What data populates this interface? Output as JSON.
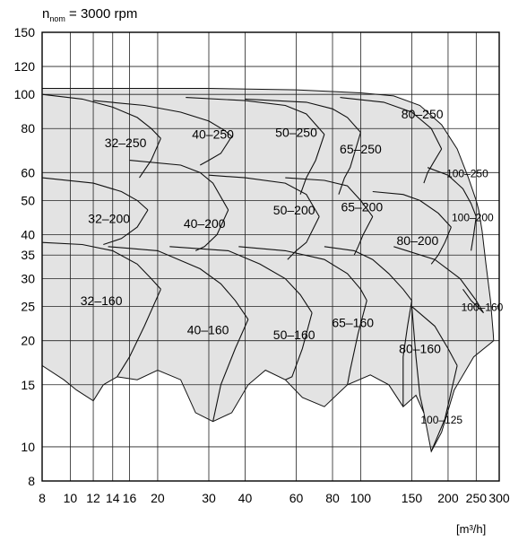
{
  "chart_data": {
    "type": "area",
    "title_main": "n",
    "title_sub": "nom",
    "title_rest": " = 3000 rpm",
    "xunit": "[m³/h]",
    "x_scale": "log",
    "y_scale": "log",
    "xlim": [
      8,
      300
    ],
    "ylim": [
      8,
      150
    ],
    "grid": true,
    "fill_color": "#e3e3e3",
    "line_color": "#111111",
    "x_ticks": [
      8,
      10,
      12,
      14,
      16,
      20,
      30,
      40,
      60,
      80,
      100,
      150,
      200,
      250,
      300
    ],
    "x_tick_labels": [
      "8",
      "10",
      "12",
      "14",
      "16",
      "20",
      "30",
      "40",
      "60",
      "80",
      "100",
      "150",
      "200",
      "250",
      "300"
    ],
    "y_ticks": [
      8,
      10,
      15,
      20,
      25,
      30,
      35,
      40,
      50,
      60,
      80,
      100,
      120,
      150
    ],
    "y_tick_labels": [
      "8",
      "10",
      "15",
      "20",
      "25",
      "30",
      "35",
      "40",
      "50",
      "60",
      "80",
      "100",
      "120",
      "150"
    ],
    "envelope": [
      [
        8,
        104
      ],
      [
        30,
        104
      ],
      [
        60,
        103
      ],
      [
        100,
        101
      ],
      [
        130,
        99
      ],
      [
        160,
        93
      ],
      [
        190,
        82
      ],
      [
        215,
        70
      ],
      [
        235,
        58
      ],
      [
        250,
        50
      ],
      [
        255,
        47
      ],
      [
        262,
        41
      ],
      [
        270,
        33
      ],
      [
        280,
        26
      ],
      [
        286,
        21
      ],
      [
        287,
        20
      ],
      [
        245,
        18
      ],
      [
        210,
        14.5
      ],
      [
        190,
        11
      ],
      [
        175,
        9.7
      ],
      [
        165,
        12.5
      ],
      [
        155,
        14
      ],
      [
        140,
        13
      ],
      [
        125,
        15
      ],
      [
        108,
        16
      ],
      [
        90,
        15
      ],
      [
        75,
        13
      ],
      [
        63,
        13.8
      ],
      [
        55,
        15.5
      ],
      [
        47,
        16.5
      ],
      [
        41,
        15
      ],
      [
        36,
        12.5
      ],
      [
        31,
        11.8
      ],
      [
        27,
        12.5
      ],
      [
        24,
        15.5
      ],
      [
        20,
        16.5
      ],
      [
        17,
        15.5
      ],
      [
        14.5,
        15.8
      ],
      [
        13,
        15
      ],
      [
        12,
        13.5
      ],
      [
        10.5,
        14.5
      ],
      [
        9.5,
        15.5
      ],
      [
        8,
        17
      ]
    ],
    "curves": [
      {
        "name": "32-250",
        "points": [
          [
            8,
            100
          ],
          [
            11,
            97
          ],
          [
            14,
            92
          ],
          [
            17,
            86
          ],
          [
            19,
            80
          ],
          [
            20.5,
            75
          ]
        ]
      },
      {
        "name": "40-250",
        "points": [
          [
            12,
            96
          ],
          [
            18,
            93
          ],
          [
            24,
            89
          ],
          [
            30,
            84
          ],
          [
            34,
            79
          ],
          [
            36,
            76
          ]
        ]
      },
      {
        "name": "50-250",
        "points": [
          [
            25,
            98
          ],
          [
            40,
            96
          ],
          [
            55,
            93
          ],
          [
            65,
            88
          ],
          [
            72,
            80
          ],
          [
            75,
            77
          ]
        ]
      },
      {
        "name": "65-250",
        "points": [
          [
            40,
            97
          ],
          [
            65,
            95
          ],
          [
            80,
            91
          ],
          [
            90,
            86
          ],
          [
            100,
            78
          ]
        ]
      },
      {
        "name": "80-250",
        "points": [
          [
            85,
            98
          ],
          [
            120,
            95
          ],
          [
            150,
            89
          ],
          [
            175,
            80
          ],
          [
            190,
            70
          ]
        ]
      },
      {
        "name": "32-200",
        "points": [
          [
            8,
            58
          ],
          [
            12,
            56
          ],
          [
            15,
            53
          ],
          [
            17,
            50
          ],
          [
            18.5,
            47
          ]
        ]
      },
      {
        "name": "40-200",
        "points": [
          [
            16,
            65
          ],
          [
            24,
            63
          ],
          [
            28,
            60
          ],
          [
            31,
            56
          ],
          [
            35,
            47
          ]
        ]
      },
      {
        "name": "50-200",
        "points": [
          [
            30,
            59
          ],
          [
            40,
            58
          ],
          [
            55,
            56
          ],
          [
            65,
            52
          ],
          [
            72,
            45
          ]
        ]
      },
      {
        "name": "65-200",
        "points": [
          [
            55,
            58
          ],
          [
            75,
            57
          ],
          [
            90,
            55
          ],
          [
            100,
            50
          ],
          [
            110,
            45
          ]
        ]
      },
      {
        "name": "80-200",
        "points": [
          [
            110,
            53
          ],
          [
            140,
            52
          ],
          [
            160,
            50
          ],
          [
            185,
            46
          ],
          [
            205,
            42
          ]
        ]
      },
      {
        "name": "100-250",
        "points": [
          [
            170,
            62
          ],
          [
            200,
            59
          ],
          [
            225,
            54
          ],
          [
            240,
            49
          ],
          [
            250,
            45
          ]
        ]
      },
      {
        "name": "32-160",
        "points": [
          [
            8,
            38
          ],
          [
            11,
            37.5
          ],
          [
            14,
            36
          ],
          [
            17,
            33
          ],
          [
            19,
            30
          ],
          [
            20.5,
            28
          ]
        ]
      },
      {
        "name": "40-160",
        "points": [
          [
            13.5,
            37
          ],
          [
            20,
            36
          ],
          [
            28,
            32
          ],
          [
            33,
            29
          ],
          [
            37,
            26
          ],
          [
            41,
            23
          ]
        ]
      },
      {
        "name": "50-160",
        "points": [
          [
            22,
            37
          ],
          [
            35,
            36
          ],
          [
            45,
            33
          ],
          [
            55,
            30
          ],
          [
            62,
            27
          ],
          [
            68,
            24
          ]
        ]
      },
      {
        "name": "65-160",
        "points": [
          [
            38,
            37
          ],
          [
            55,
            36
          ],
          [
            75,
            34
          ],
          [
            90,
            31
          ],
          [
            100,
            28
          ],
          [
            105,
            26
          ]
        ]
      },
      {
        "name": "80-160",
        "points": [
          [
            75,
            37
          ],
          [
            95,
            36
          ],
          [
            110,
            34
          ],
          [
            125,
            31
          ],
          [
            140,
            28
          ],
          [
            150,
            26
          ]
        ]
      },
      {
        "name": "100-160",
        "points": [
          [
            130,
            37
          ],
          [
            180,
            34
          ],
          [
            220,
            30
          ],
          [
            250,
            26
          ],
          [
            265,
            24
          ]
        ]
      },
      {
        "name": "100-125",
        "points": [
          [
            150,
            25
          ],
          [
            180,
            22
          ],
          [
            200,
            19
          ],
          [
            215,
            17
          ]
        ]
      }
    ],
    "extra_boundaries": [
      [
        [
          20.5,
          75
        ],
        [
          19,
          65
        ],
        [
          17.3,
          58
        ]
      ],
      [
        [
          36,
          76
        ],
        [
          33,
          68
        ],
        [
          30,
          65
        ],
        [
          28,
          63
        ]
      ],
      [
        [
          75,
          77
        ],
        [
          70,
          65
        ],
        [
          65,
          58
        ],
        [
          62,
          52
        ]
      ],
      [
        [
          100,
          78
        ],
        [
          92,
          62
        ],
        [
          88,
          58
        ],
        [
          84,
          52
        ]
      ],
      [
        [
          190,
          70
        ],
        [
          178,
          64
        ],
        [
          170,
          60
        ],
        [
          165,
          56
        ]
      ],
      [
        [
          18.5,
          47
        ],
        [
          17,
          42
        ],
        [
          15,
          39
        ],
        [
          13,
          37.5
        ]
      ],
      [
        [
          35,
          47
        ],
        [
          32,
          40
        ],
        [
          29,
          37
        ],
        [
          27,
          36
        ]
      ],
      [
        [
          72,
          45
        ],
        [
          65,
          38
        ],
        [
          60,
          36
        ],
        [
          56,
          34
        ]
      ],
      [
        [
          110,
          45
        ],
        [
          102,
          40
        ],
        [
          98,
          37
        ],
        [
          95,
          35
        ]
      ],
      [
        [
          205,
          42
        ],
        [
          195,
          38
        ],
        [
          185,
          35
        ],
        [
          175,
          33
        ]
      ],
      [
        [
          250,
          45
        ],
        [
          245,
          40
        ],
        [
          240,
          36
        ]
      ],
      [
        [
          20.5,
          28
        ],
        [
          18,
          22
        ],
        [
          16,
          18
        ],
        [
          14.5,
          15.8
        ]
      ],
      [
        [
          41,
          23
        ],
        [
          37,
          19
        ],
        [
          33,
          15
        ],
        [
          31,
          11.8
        ]
      ],
      [
        [
          68,
          24
        ],
        [
          63,
          19
        ],
        [
          58,
          15.8
        ],
        [
          55,
          15.5
        ]
      ],
      [
        [
          105,
          26
        ],
        [
          98,
          21
        ],
        [
          92,
          16.5
        ],
        [
          90,
          15
        ]
      ],
      [
        [
          150,
          26
        ],
        [
          145,
          22
        ],
        [
          140,
          18
        ],
        [
          140,
          13
        ]
      ],
      [
        [
          265,
          24
        ],
        [
          240,
          26
        ],
        [
          225,
          28
        ]
      ],
      [
        [
          215,
          17
        ],
        [
          195,
          12
        ],
        [
          175,
          9.7
        ]
      ],
      [
        [
          150,
          25
        ],
        [
          155,
          18
        ],
        [
          160,
          14
        ],
        [
          165,
          12.5
        ]
      ]
    ],
    "labels": [
      {
        "text": "32–250",
        "x": 15.5,
        "y": 73
      },
      {
        "text": "40–250",
        "x": 31,
        "y": 77
      },
      {
        "text": "50–250",
        "x": 60,
        "y": 78
      },
      {
        "text": "65–250",
        "x": 100,
        "y": 70
      },
      {
        "text": "80–250",
        "x": 163,
        "y": 88
      },
      {
        "text": "100–250",
        "x": 233,
        "y": 60
      },
      {
        "text": "32–200",
        "x": 13.6,
        "y": 44.5
      },
      {
        "text": "40–200",
        "x": 29,
        "y": 43
      },
      {
        "text": "50–200",
        "x": 59,
        "y": 47
      },
      {
        "text": "65–200",
        "x": 101,
        "y": 48
      },
      {
        "text": "80–200",
        "x": 157,
        "y": 38.5
      },
      {
        "text": "100–200",
        "x": 243,
        "y": 45
      },
      {
        "text": "32–160",
        "x": 12.8,
        "y": 26
      },
      {
        "text": "40–160",
        "x": 29.8,
        "y": 21.5
      },
      {
        "text": "50–160",
        "x": 59,
        "y": 20.8
      },
      {
        "text": "65–160",
        "x": 94,
        "y": 22.5
      },
      {
        "text": "80–160",
        "x": 160,
        "y": 19
      },
      {
        "text": "100–160",
        "x": 262,
        "y": 25
      },
      {
        "text": "100–125",
        "x": 190,
        "y": 12
      }
    ],
    "small_labels": [
      "100–250",
      "100–200",
      "100–160",
      "100–125"
    ]
  }
}
